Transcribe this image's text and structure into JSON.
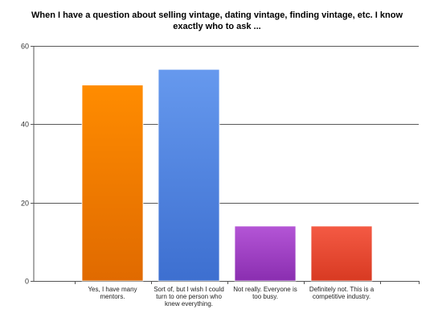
{
  "chart_data": {
    "type": "bar",
    "title": "When I have a question about selling vintage, dating vintage, finding vintage, etc. I know exactly who to ask ...",
    "categories": [
      "Yes, I have many mentors.",
      "Sort of, but I wish I could turn to one person who knew everything.",
      "Not really. Everyone is too busy.",
      "Definitely not. This is a competitive industry."
    ],
    "values": [
      50,
      54,
      14,
      14
    ],
    "colors": [
      [
        "#ff8c00",
        "#e06a00"
      ],
      [
        "#6699ee",
        "#3d6fd0"
      ],
      [
        "#b455d6",
        "#8a2eb0"
      ],
      [
        "#f45a44",
        "#d83a22"
      ]
    ],
    "ylim": [
      0,
      60
    ],
    "yticks": [
      0,
      20,
      40,
      60
    ],
    "grid": true,
    "xlabel": "",
    "ylabel": ""
  }
}
